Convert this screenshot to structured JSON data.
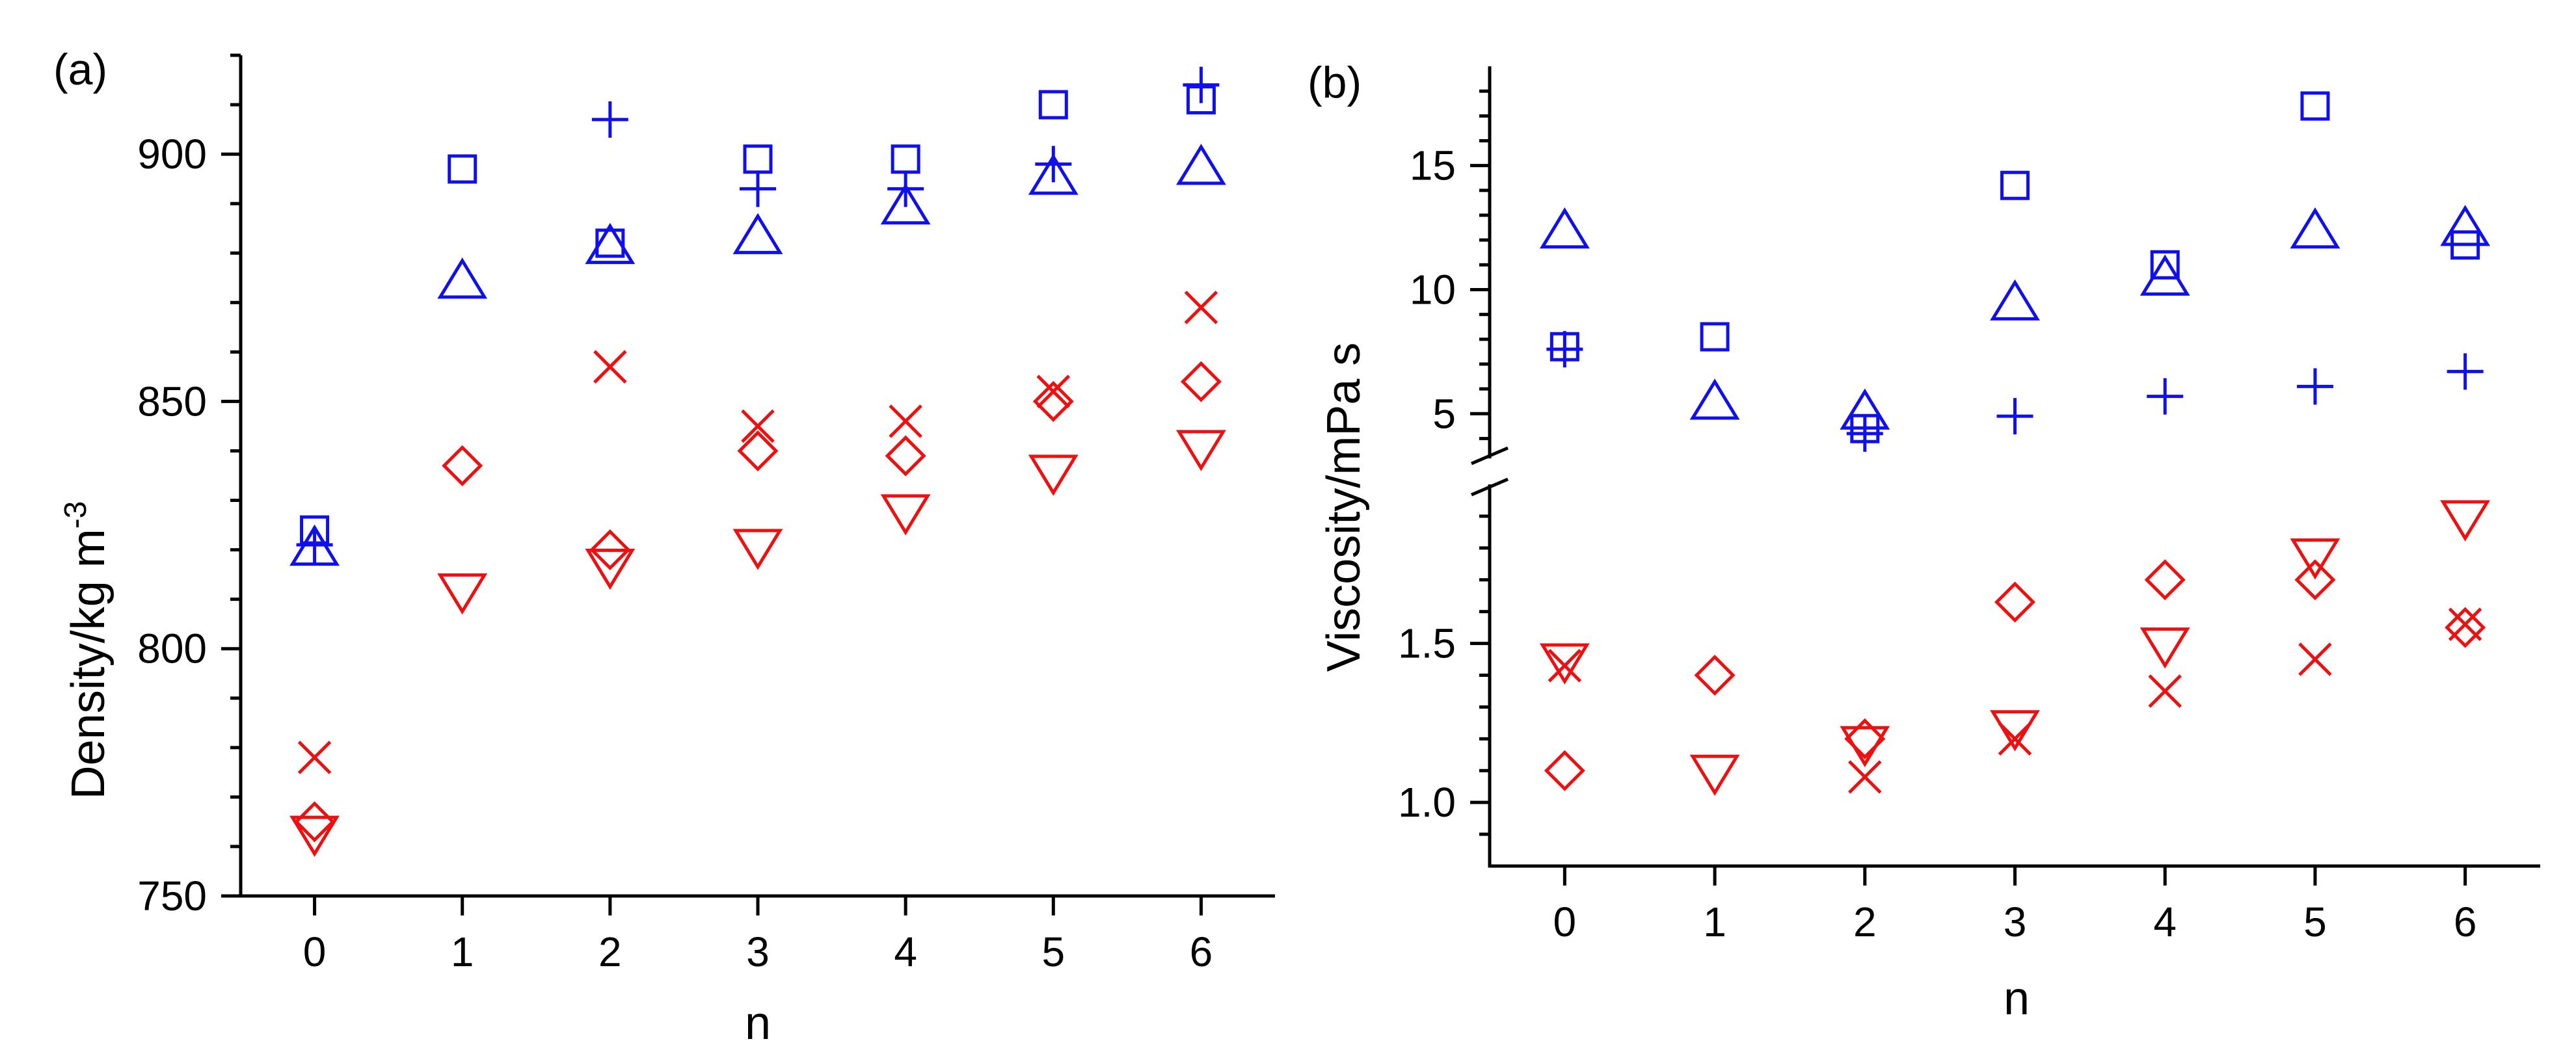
{
  "colors": {
    "blue": "#1010ee",
    "red": "#ee1010"
  },
  "chart_data": [
    {
      "type": "scatter",
      "panel_label": "(a)",
      "title": "",
      "xlabel": "n",
      "ylabel_main": "Density/kg m",
      "ylabel_sup": "-3",
      "xlim": [
        -0.5,
        6.5
      ],
      "ylim": [
        750,
        920
      ],
      "x_ticks": [
        0,
        1,
        2,
        3,
        4,
        5,
        6
      ],
      "x_tick_labels": [
        "0",
        "1",
        "2",
        "3",
        "4",
        "5",
        "6"
      ],
      "y_ticks": [
        750,
        800,
        850,
        900
      ],
      "y_tick_labels": [
        "750",
        "800",
        "850",
        "900"
      ],
      "series": [
        {
          "name": "blue-square",
          "marker": "square",
          "color": "blue",
          "x": [
            0,
            1,
            2,
            3,
            4,
            5,
            6
          ],
          "y": [
            824,
            897,
            882,
            899,
            899,
            910,
            911
          ]
        },
        {
          "name": "blue-plus",
          "marker": "plus",
          "color": "blue",
          "x": [
            0,
            2,
            3,
            4,
            5,
            6
          ],
          "y": [
            821,
            907,
            893,
            893,
            898,
            914
          ]
        },
        {
          "name": "blue-triangle-up",
          "marker": "triangle-up",
          "color": "blue",
          "x": [
            0,
            1,
            2,
            3,
            4,
            5,
            6
          ],
          "y": [
            820,
            874,
            881,
            883,
            889,
            895,
            897
          ]
        },
        {
          "name": "red-cross",
          "marker": "cross",
          "color": "red",
          "x": [
            0,
            2,
            3,
            4,
            5,
            6
          ],
          "y": [
            778,
            857,
            845,
            846,
            852,
            869
          ]
        },
        {
          "name": "red-diamond",
          "marker": "diamond",
          "color": "red",
          "x": [
            0,
            1,
            2,
            3,
            4,
            5,
            6
          ],
          "y": [
            765,
            837,
            820,
            840,
            839,
            850,
            854
          ]
        },
        {
          "name": "red-triangle-down",
          "marker": "triangle-down",
          "color": "red",
          "x": [
            0,
            1,
            2,
            3,
            4,
            5,
            6
          ],
          "y": [
            763,
            812,
            817,
            821,
            828,
            836,
            841
          ]
        }
      ]
    },
    {
      "type": "scatter",
      "panel_label": "(b)",
      "title": "",
      "xlabel": "n",
      "ylabel": "Viscosity/mPa s",
      "xlim": [
        -0.5,
        6.5
      ],
      "y_axis_break": true,
      "ylim_lower": [
        0.8,
        2.0
      ],
      "ylim_upper": [
        3.2,
        19.0
      ],
      "x_ticks": [
        0,
        1,
        2,
        3,
        4,
        5,
        6
      ],
      "x_tick_labels": [
        "0",
        "1",
        "2",
        "3",
        "4",
        "5",
        "6"
      ],
      "y_ticks_lower": [
        1.0,
        1.5
      ],
      "y_tick_labels_lower": [
        "1.0",
        "1.5"
      ],
      "y_ticks_upper": [
        5,
        10,
        15
      ],
      "y_tick_labels_upper": [
        "5",
        "10",
        "15"
      ],
      "series": [
        {
          "name": "blue-square",
          "marker": "square",
          "color": "blue",
          "x": [
            0,
            1,
            2,
            3,
            4,
            5,
            6
          ],
          "y": [
            7.7,
            8.1,
            4.4,
            14.2,
            11.0,
            17.4,
            11.8
          ]
        },
        {
          "name": "blue-plus",
          "marker": "plus",
          "color": "blue",
          "x": [
            0,
            2,
            3,
            4,
            5,
            6
          ],
          "y": [
            7.6,
            4.2,
            4.9,
            5.7,
            6.1,
            6.7
          ]
        },
        {
          "name": "blue-triangle-up",
          "marker": "triangle-up",
          "color": "blue",
          "x": [
            0,
            1,
            2,
            3,
            4,
            5,
            6
          ],
          "y": [
            12.3,
            5.4,
            5.0,
            9.4,
            10.4,
            12.3,
            12.4
          ]
        },
        {
          "name": "red-cross",
          "marker": "cross",
          "color": "red",
          "x": [
            0,
            2,
            3,
            4,
            5,
            6
          ],
          "y": [
            1.43,
            1.08,
            1.2,
            1.35,
            1.45,
            1.56
          ]
        },
        {
          "name": "red-diamond",
          "marker": "diamond",
          "color": "red",
          "x": [
            0,
            1,
            2,
            3,
            4,
            5,
            6
          ],
          "y": [
            1.1,
            1.4,
            1.2,
            1.63,
            1.7,
            1.7,
            1.55
          ]
        },
        {
          "name": "red-triangle-down",
          "marker": "triangle-down",
          "color": "red",
          "x": [
            0,
            1,
            2,
            3,
            4,
            5,
            6
          ],
          "y": [
            1.45,
            1.1,
            1.19,
            1.24,
            1.5,
            1.78,
            1.9
          ]
        }
      ]
    }
  ]
}
